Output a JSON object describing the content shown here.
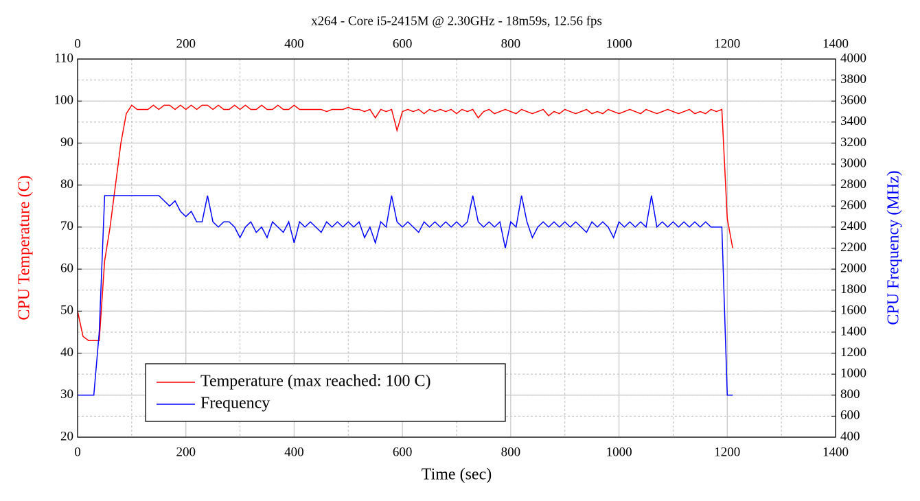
{
  "chart_data": {
    "type": "line",
    "title": "x264 - Core i5-2415M @ 2.30GHz - 18m59s, 12.56 fps",
    "x_label": "Time (sec)",
    "y_label": "CPU Temperature (C)",
    "y2_label": "CPU Frequency (MHz)",
    "x": [
      0,
      10,
      20,
      30,
      40,
      50,
      60,
      70,
      80,
      90,
      100,
      110,
      120,
      130,
      140,
      150,
      160,
      170,
      180,
      190,
      200,
      210,
      220,
      230,
      240,
      250,
      260,
      270,
      280,
      290,
      300,
      310,
      320,
      330,
      340,
      350,
      360,
      370,
      380,
      390,
      400,
      410,
      420,
      430,
      440,
      450,
      460,
      470,
      480,
      490,
      500,
      510,
      520,
      530,
      540,
      550,
      560,
      570,
      580,
      590,
      600,
      610,
      620,
      630,
      640,
      650,
      660,
      670,
      680,
      690,
      700,
      710,
      720,
      730,
      740,
      750,
      760,
      770,
      780,
      790,
      800,
      810,
      820,
      830,
      840,
      850,
      860,
      870,
      880,
      890,
      900,
      910,
      920,
      930,
      940,
      950,
      960,
      970,
      980,
      990,
      1000,
      1010,
      1020,
      1030,
      1040,
      1050,
      1060,
      1070,
      1080,
      1090,
      1100,
      1110,
      1120,
      1130,
      1140,
      1150,
      1160,
      1170,
      1180,
      1190,
      1200,
      1210
    ],
    "series": [
      {
        "name": "Temperature (max reached: 100 C)",
        "color": "#ff0000",
        "axis": "y",
        "values": [
          50,
          44,
          43,
          43,
          43,
          62,
          70,
          80,
          90,
          97,
          99,
          98,
          98,
          98,
          99,
          98,
          99,
          99,
          98,
          99,
          98,
          99,
          98,
          99,
          99,
          98,
          99,
          98,
          98,
          99,
          98,
          99,
          98,
          98,
          99,
          98,
          98,
          99,
          98,
          98,
          99,
          98,
          98,
          98,
          98,
          98,
          97.5,
          98,
          98,
          98,
          98.5,
          98,
          98,
          97.5,
          98,
          96,
          98,
          97.5,
          98,
          93,
          97.5,
          98,
          97.5,
          98,
          97,
          98,
          97.5,
          98,
          97.5,
          98,
          97,
          98,
          97.5,
          98,
          96,
          97.5,
          98,
          97,
          97.5,
          98,
          97.5,
          97,
          98,
          97.5,
          97,
          97.5,
          98,
          96.5,
          97.5,
          97,
          98,
          97.5,
          97,
          97.5,
          98,
          97,
          97.5,
          97,
          98,
          97.5,
          97,
          97.5,
          98,
          97.5,
          97,
          98,
          97.5,
          97,
          97.5,
          98,
          97.5,
          97,
          97.5,
          98,
          97,
          97.5,
          97,
          98,
          97.5,
          98,
          72,
          65
        ]
      },
      {
        "name": "Frequency",
        "color": "#0000ff",
        "axis": "y2",
        "values": [
          800,
          800,
          800,
          800,
          1400,
          2700,
          2700,
          2700,
          2700,
          2700,
          2700,
          2700,
          2700,
          2700,
          2700,
          2700,
          2650,
          2600,
          2650,
          2550,
          2500,
          2550,
          2450,
          2450,
          2700,
          2450,
          2400,
          2450,
          2450,
          2400,
          2300,
          2400,
          2450,
          2350,
          2400,
          2300,
          2450,
          2400,
          2350,
          2450,
          2250,
          2450,
          2400,
          2450,
          2400,
          2350,
          2450,
          2400,
          2450,
          2400,
          2450,
          2400,
          2450,
          2300,
          2400,
          2250,
          2450,
          2400,
          2700,
          2450,
          2400,
          2450,
          2400,
          2350,
          2450,
          2400,
          2450,
          2400,
          2450,
          2400,
          2450,
          2400,
          2450,
          2700,
          2450,
          2400,
          2450,
          2400,
          2450,
          2200,
          2450,
          2400,
          2700,
          2450,
          2300,
          2400,
          2450,
          2400,
          2450,
          2400,
          2450,
          2400,
          2450,
          2400,
          2350,
          2450,
          2400,
          2450,
          2400,
          2300,
          2450,
          2400,
          2450,
          2400,
          2450,
          2400,
          2700,
          2400,
          2450,
          2400,
          2450,
          2400,
          2450,
          2400,
          2450,
          2400,
          2450,
          2400,
          2400,
          2400,
          800,
          800
        ]
      }
    ],
    "xlim": [
      0,
      1400
    ],
    "xticks": [
      0,
      200,
      400,
      600,
      800,
      1000,
      1200,
      1400
    ],
    "xminorticks": [
      100,
      300,
      500,
      700,
      900,
      1100,
      1300
    ],
    "ylim": [
      20,
      110
    ],
    "yticks": [
      20,
      30,
      40,
      50,
      60,
      70,
      80,
      90,
      100,
      110
    ],
    "y2lim": [
      400,
      4000
    ],
    "y2ticks": [
      400,
      600,
      800,
      1000,
      1200,
      1400,
      1600,
      1800,
      2000,
      2200,
      2400,
      2600,
      2800,
      3000,
      3200,
      3400,
      3600,
      3800,
      4000
    ],
    "grid": true,
    "legend": "lower left"
  }
}
